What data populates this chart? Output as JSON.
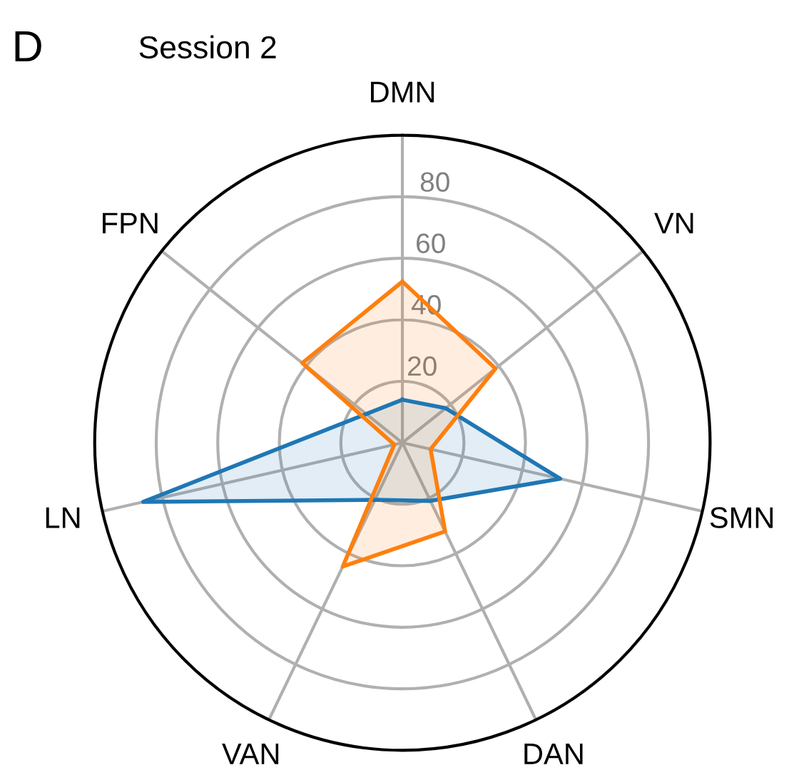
{
  "chart_data": {
    "type": "radar",
    "title": "Session 2",
    "annotations": [
      "D"
    ],
    "categories": [
      "DMN",
      "VN",
      "SMN",
      "DAN",
      "VAN",
      "LN",
      "FPN"
    ],
    "series": [
      {
        "color": "#1f77b4",
        "values": [
          14,
          18,
          52.6,
          21,
          20.6,
          86.4,
          15
        ]
      },
      {
        "color": "#ff7f0e",
        "values": [
          52.4,
          38.7,
          9.4,
          32,
          44.7,
          2.7,
          41.6
        ]
      }
    ],
    "ylim": [
      0,
      100
    ],
    "yticks": [
      20,
      40,
      60,
      80
    ],
    "grid": true,
    "legend": false
  }
}
